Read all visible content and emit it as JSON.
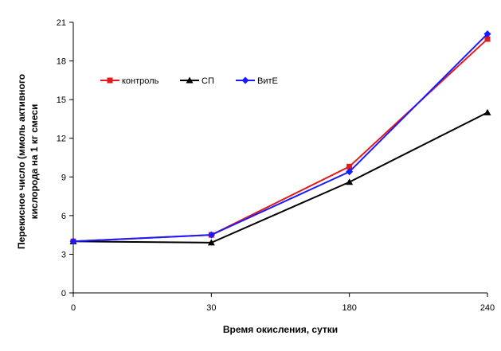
{
  "chart_data": {
    "type": "line",
    "categories": [
      "0",
      "30",
      "180",
      "240"
    ],
    "series": [
      {
        "name": "контроль",
        "values": [
          4.0,
          4.5,
          9.8,
          19.7
        ],
        "color": "#e31a1c",
        "marker": "square"
      },
      {
        "name": "СП",
        "values": [
          4.0,
          3.9,
          8.6,
          14.0
        ],
        "color": "#000000",
        "marker": "triangle"
      },
      {
        "name": "ВитЕ",
        "values": [
          4.0,
          4.5,
          9.4,
          20.1
        ],
        "color": "#1a1aff",
        "marker": "diamond"
      }
    ],
    "xlabel": "Время окисления, сутки",
    "ylabel_line1": "Перекисное число (ммоль активного",
    "ylabel_line2": "кислорода на 1 кг смеси",
    "ylim": [
      0,
      21
    ],
    "yticks": [
      0,
      3,
      6,
      9,
      12,
      15,
      18,
      21
    ],
    "grid": false,
    "legend": "top-left"
  }
}
